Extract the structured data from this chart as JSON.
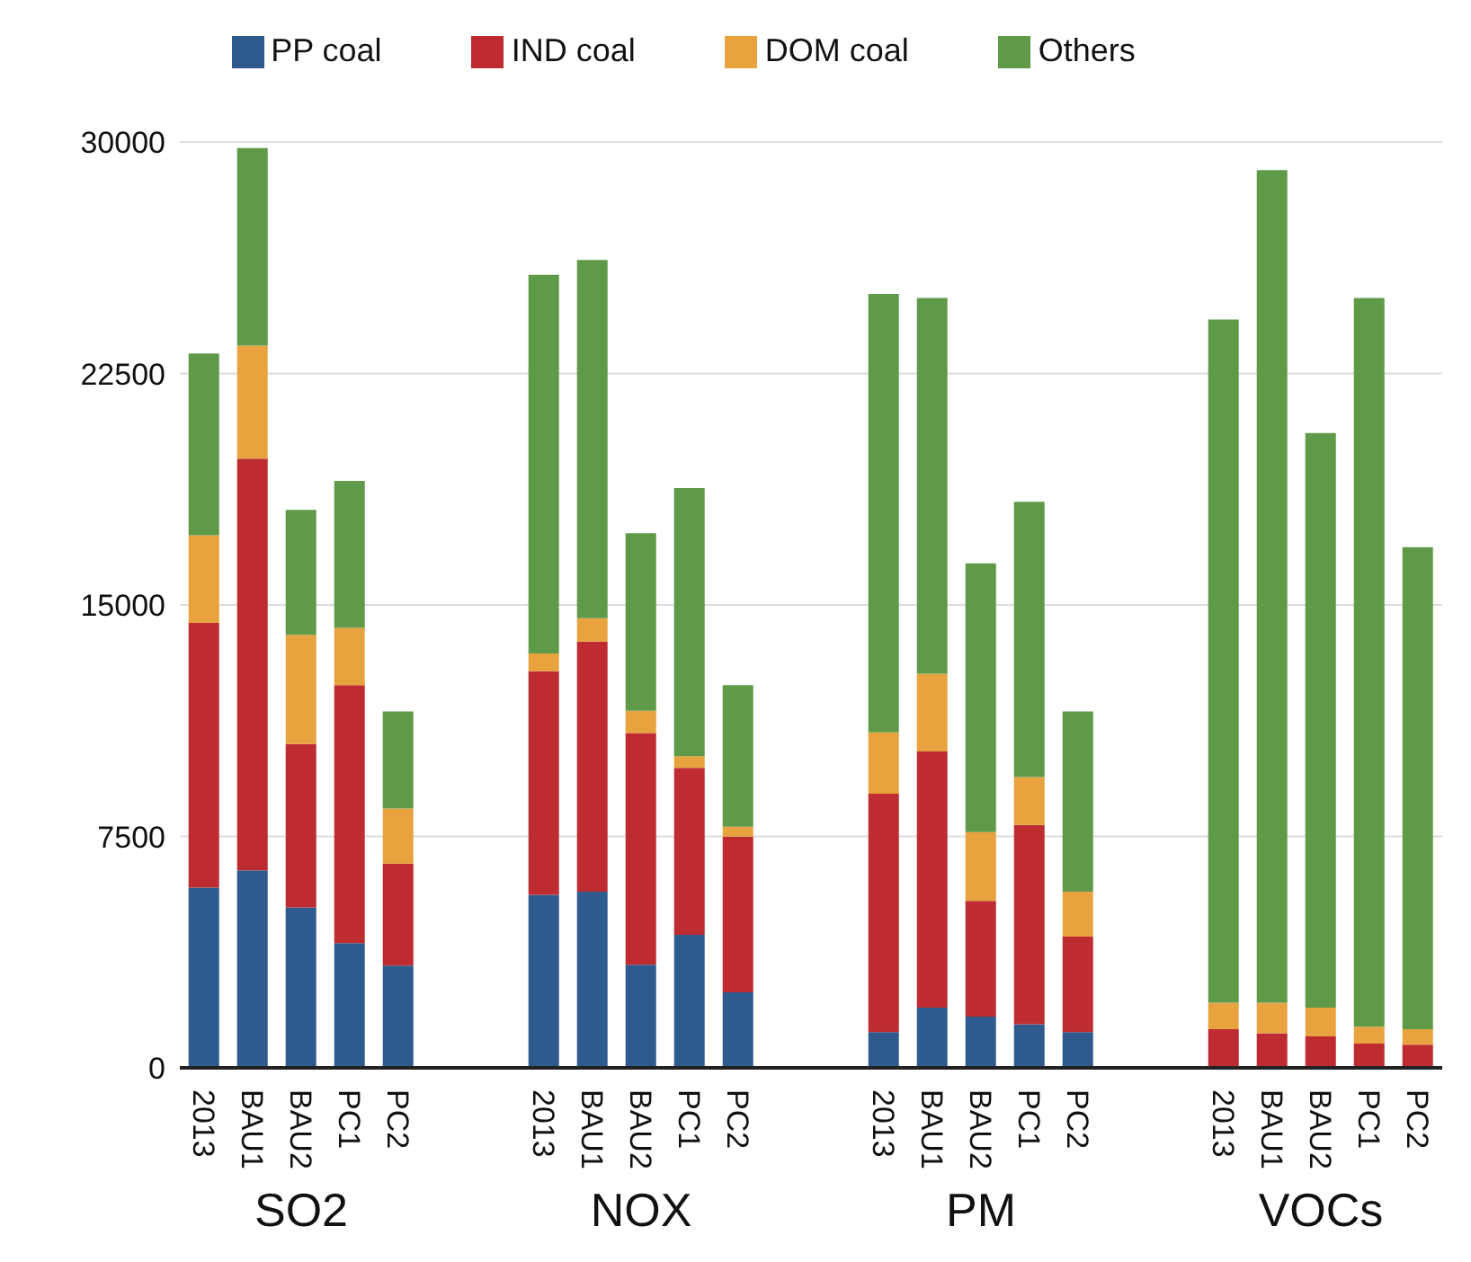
{
  "chart_data": {
    "type": "bar",
    "stacked": true,
    "categories": [
      "2013",
      "BAU1",
      "BAU2",
      "PC1",
      "PC2",
      null,
      null,
      "2013",
      "BAU1",
      "BAU2",
      "PC1",
      "PC2",
      null,
      null,
      "2013",
      "BAU1",
      "BAU2",
      "PC1",
      "PC2",
      null,
      null,
      "2013",
      "BAU1",
      "BAU2",
      "PC1",
      "PC2"
    ],
    "series": [
      {
        "name": "PP coal",
        "color": "#2e5a8e",
        "values": [
          5840,
          6400,
          5200,
          4040,
          3310,
          null,
          null,
          5610,
          5710,
          3340,
          4310,
          2450,
          null,
          null,
          1160,
          1950,
          1660,
          1410,
          1160,
          null,
          null,
          0,
          0,
          0,
          0,
          0
        ]
      },
      {
        "name": "IND coal",
        "color": "#be2b30",
        "values": [
          8580,
          13340,
          5290,
          8360,
          3310,
          null,
          null,
          7240,
          8100,
          7510,
          5410,
          5040,
          null,
          null,
          7720,
          8300,
          3750,
          6460,
          3090,
          null,
          null,
          1250,
          1120,
          1020,
          790,
          750
        ]
      },
      {
        "name": "DOM coal",
        "color": "#e8a23e",
        "values": [
          2840,
          3660,
          3540,
          1860,
          1780,
          null,
          null,
          580,
          760,
          720,
          380,
          320,
          null,
          null,
          1990,
          2520,
          2230,
          1550,
          1460,
          null,
          null,
          860,
          990,
          930,
          540,
          500
        ]
      },
      {
        "name": "Others",
        "color": "#5f9a48",
        "values": [
          5890,
          6400,
          4050,
          4760,
          3150,
          null,
          null,
          12270,
          11610,
          5750,
          8690,
          4590,
          null,
          null,
          14210,
          12180,
          8710,
          8920,
          5840,
          null,
          null,
          22140,
          26980,
          18620,
          23620,
          15620
        ]
      }
    ],
    "ylim": [
      0,
      30000
    ],
    "yticks": [
      0,
      7500,
      15000,
      22500,
      30000
    ],
    "grid": "y",
    "legend": "top",
    "annotations": [
      "SO2",
      "NOX",
      "PM",
      "VOCs"
    ]
  }
}
